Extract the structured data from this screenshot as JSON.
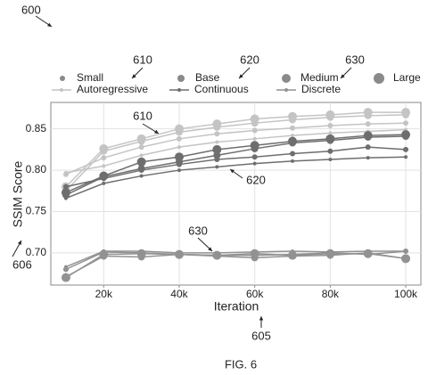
{
  "chart_data": {
    "type": "line",
    "xlabel": "Iteration",
    "ylabel": "SSIM Score",
    "x": [
      10000,
      20000,
      30000,
      40000,
      50000,
      60000,
      70000,
      80000,
      90000,
      100000
    ],
    "xlim": [
      6000,
      104000
    ],
    "xticks": [
      {
        "value": 20000,
        "label": "20k"
      },
      {
        "value": 40000,
        "label": "40k"
      },
      {
        "value": 60000,
        "label": "60k"
      },
      {
        "value": 80000,
        "label": "80k"
      },
      {
        "value": 100000,
        "label": "100k"
      }
    ],
    "ylim": [
      0.661,
      0.882
    ],
    "yticks": [
      {
        "value": 0.7,
        "label": "0.70"
      },
      0.75,
      {
        "value": 0.8,
        "label": "0.80"
      },
      0.85
    ],
    "grid": true,
    "sizes": [
      {
        "name": "Small",
        "marker_radius": 2
      },
      {
        "name": "Base",
        "marker_radius": 3
      },
      {
        "name": "Medium",
        "marker_radius": 4
      },
      {
        "name": "Large",
        "marker_radius": 5
      }
    ],
    "methods": [
      {
        "name": "Autoregressive",
        "color": "#c4c4c4",
        "values_by_size": [
          [
            0.797,
            0.805,
            0.818,
            0.828,
            0.834,
            0.838,
            0.842,
            0.845,
            0.847,
            0.849
          ],
          [
            0.795,
            0.815,
            0.828,
            0.838,
            0.844,
            0.848,
            0.851,
            0.854,
            0.856,
            0.857
          ],
          [
            0.775,
            0.823,
            0.835,
            0.846,
            0.852,
            0.857,
            0.861,
            0.864,
            0.866,
            0.867
          ],
          [
            0.78,
            0.826,
            0.838,
            0.85,
            0.856,
            0.862,
            0.865,
            0.867,
            0.87,
            0.87
          ]
        ]
      },
      {
        "name": "Continuous",
        "color": "#6e6e6e",
        "values_by_size": [
          [
            0.766,
            0.784,
            0.793,
            0.8,
            0.804,
            0.808,
            0.811,
            0.813,
            0.815,
            0.816
          ],
          [
            0.78,
            0.79,
            0.8,
            0.807,
            0.813,
            0.816,
            0.82,
            0.823,
            0.828,
            0.825
          ],
          [
            0.77,
            0.792,
            0.802,
            0.81,
            0.818,
            0.826,
            0.833,
            0.836,
            0.84,
            0.841
          ],
          [
            0.773,
            0.793,
            0.81,
            0.816,
            0.825,
            0.83,
            0.835,
            0.838,
            0.842,
            0.843
          ]
        ]
      },
      {
        "name": "Discrete",
        "color": "#929292",
        "values_by_size": [
          [
            0.683,
            0.702,
            0.702,
            0.7,
            0.7,
            0.701,
            0.702,
            0.701,
            0.702,
            0.702
          ],
          [
            0.68,
            0.701,
            0.7,
            0.698,
            0.697,
            0.697,
            0.698,
            0.7,
            0.698,
            0.702
          ],
          [
            0.671,
            0.696,
            0.695,
            0.698,
            0.696,
            0.694,
            0.696,
            0.697,
            0.7,
            0.693
          ],
          [
            0.67,
            0.698,
            0.699,
            0.698,
            0.697,
            0.699,
            0.697,
            0.699,
            0.699,
            0.693
          ]
        ]
      }
    ],
    "reference_numerals": [
      "600",
      "610",
      "620",
      "630",
      "610",
      "620",
      "630",
      "606",
      "605"
    ],
    "figure_label": "FIG. 6"
  }
}
